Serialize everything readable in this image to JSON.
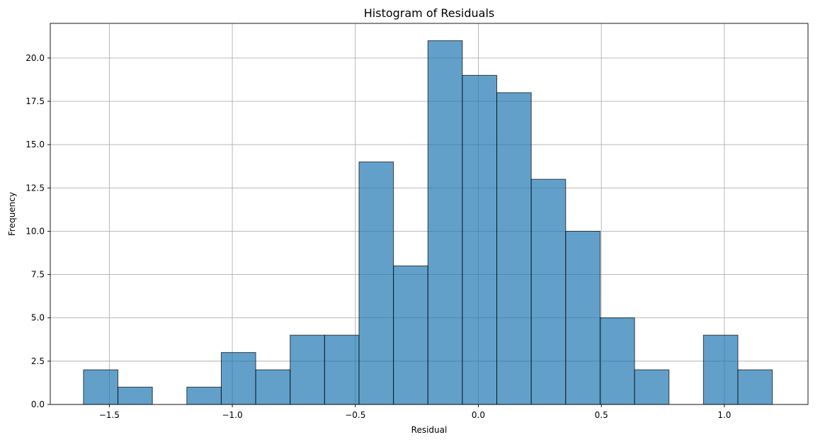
{
  "chart_data": {
    "type": "bar",
    "title": "Histogram of Residuals",
    "xlabel": "Residual",
    "ylabel": "Frequency",
    "xlim": [
      -1.74,
      1.34
    ],
    "ylim": [
      0,
      22
    ],
    "grid": true,
    "bar_color": "#1f77b4",
    "bins": [
      {
        "x0": -1.605,
        "x1": -1.465,
        "count": 2
      },
      {
        "x0": -1.465,
        "x1": -1.325,
        "count": 1
      },
      {
        "x0": -1.325,
        "x1": -1.185,
        "count": 0
      },
      {
        "x0": -1.185,
        "x1": -1.045,
        "count": 1
      },
      {
        "x0": -1.045,
        "x1": -0.905,
        "count": 3
      },
      {
        "x0": -0.905,
        "x1": -0.765,
        "count": 2
      },
      {
        "x0": -0.765,
        "x1": -0.625,
        "count": 4
      },
      {
        "x0": -0.625,
        "x1": -0.485,
        "count": 4
      },
      {
        "x0": -0.485,
        "x1": -0.345,
        "count": 14
      },
      {
        "x0": -0.345,
        "x1": -0.205,
        "count": 8
      },
      {
        "x0": -0.205,
        "x1": -0.065,
        "count": 21
      },
      {
        "x0": -0.065,
        "x1": 0.075,
        "count": 19
      },
      {
        "x0": 0.075,
        "x1": 0.215,
        "count": 18
      },
      {
        "x0": 0.215,
        "x1": 0.355,
        "count": 13
      },
      {
        "x0": 0.355,
        "x1": 0.495,
        "count": 10
      },
      {
        "x0": 0.495,
        "x1": 0.635,
        "count": 5
      },
      {
        "x0": 0.635,
        "x1": 0.775,
        "count": 2
      },
      {
        "x0": 0.775,
        "x1": 0.915,
        "count": 0
      },
      {
        "x0": 0.915,
        "x1": 1.055,
        "count": 4
      },
      {
        "x0": 1.055,
        "x1": 1.195,
        "count": 2
      }
    ],
    "x_ticks": [
      {
        "value": -1.5,
        "label": "−1.5"
      },
      {
        "value": -1.0,
        "label": "−1.0"
      },
      {
        "value": -0.5,
        "label": "−0.5"
      },
      {
        "value": 0.0,
        "label": "0.0"
      },
      {
        "value": 0.5,
        "label": "0.5"
      },
      {
        "value": 1.0,
        "label": "1.0"
      }
    ],
    "y_ticks": [
      {
        "value": 0,
        "label": "0.0"
      },
      {
        "value": 2.5,
        "label": "2.5"
      },
      {
        "value": 5,
        "label": "5.0"
      },
      {
        "value": 7.5,
        "label": "7.5"
      },
      {
        "value": 10,
        "label": "10.0"
      },
      {
        "value": 12.5,
        "label": "12.5"
      },
      {
        "value": 15,
        "label": "15.0"
      },
      {
        "value": 17.5,
        "label": "17.5"
      },
      {
        "value": 20,
        "label": "20.0"
      }
    ]
  }
}
